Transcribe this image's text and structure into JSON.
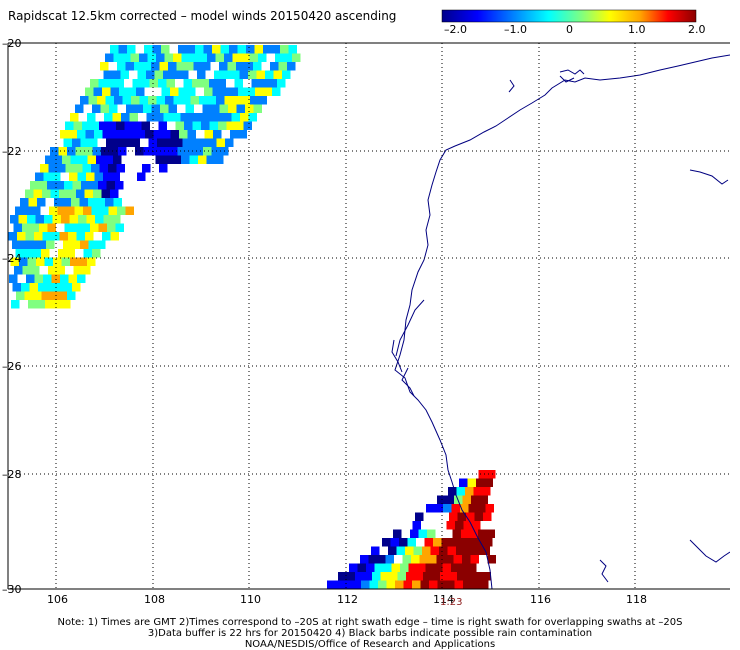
{
  "title": "Rapidscat 12.5km corrected – model winds 20150420 ascending",
  "colorbar": {
    "ticks": [
      "–2.0",
      "–1.0",
      "0",
      "1.0",
      "2.0"
    ],
    "colors": [
      "#00008b",
      "#0000ff",
      "#0080ff",
      "#00ffff",
      "#80ff80",
      "#ffff00",
      "#ffa500",
      "#ff0000",
      "#8b0000"
    ]
  },
  "axes": {
    "x_labels": [
      "106",
      "108",
      "110",
      "112",
      "114",
      "116",
      "118"
    ],
    "y_labels": [
      "–20",
      "–22",
      "–24",
      "–26",
      "–28",
      "–30"
    ]
  },
  "time_label": "1:23",
  "notes": [
    "Note: 1) Times are GMT 2)Times correspond to –20S at right swath edge – time is right swath for overlapping swaths at –20S",
    "3)Data buffer is 22 hrs for 20150420 4) Black barbs indicate possible rain contamination",
    "NOAA/NESDIS/Office of Research and Applications"
  ]
}
